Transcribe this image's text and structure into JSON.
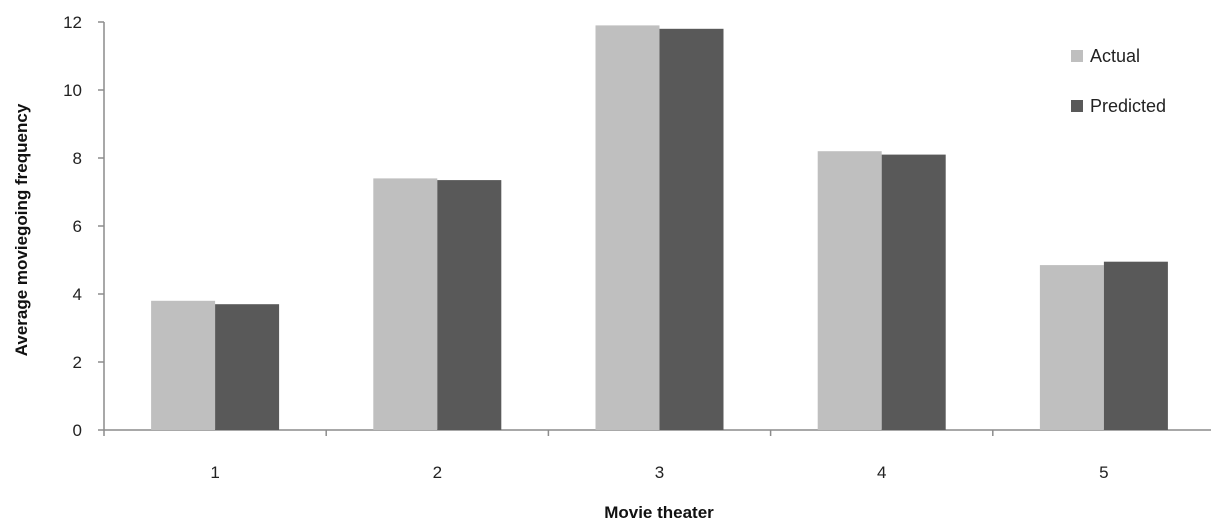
{
  "chart_data": {
    "type": "bar",
    "title": "",
    "xlabel": "Movie theater",
    "ylabel": "Average moviegoing frequency",
    "categories": [
      "1",
      "2",
      "3",
      "4",
      "5"
    ],
    "series": [
      {
        "name": "Actual",
        "values": [
          3.8,
          7.4,
          11.9,
          8.2,
          4.85
        ],
        "color": "#bfbfbf"
      },
      {
        "name": "Predicted",
        "values": [
          3.7,
          7.35,
          11.8,
          8.1,
          4.95
        ],
        "color": "#595959"
      }
    ],
    "ylim": [
      0,
      12
    ],
    "yticks": [
      0,
      2,
      4,
      6,
      8,
      10,
      12
    ],
    "grid": false,
    "legend_position": "top-right"
  }
}
